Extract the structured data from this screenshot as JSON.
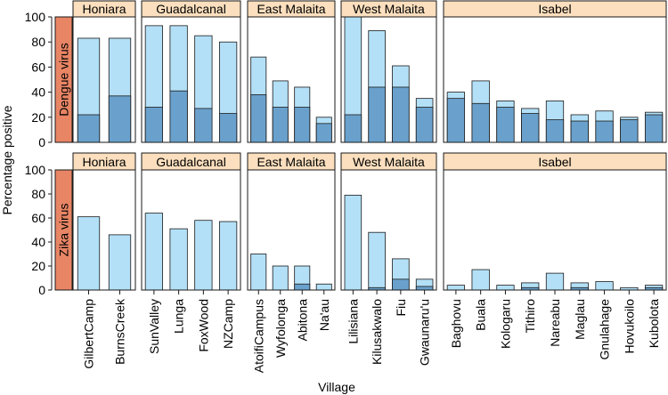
{
  "chart_data": {
    "type": "bar",
    "title": "",
    "xlabel": "Village",
    "ylabel": "Percentage positive",
    "ylim": [
      0,
      100
    ],
    "yticks": [
      0,
      20,
      40,
      60,
      80,
      100
    ],
    "colors": {
      "light": "#b3e0f7",
      "dark": "#6aa1cc",
      "strip": "#fbdfbe",
      "row_strip": "#e88565",
      "edge": "#1a1a1a"
    },
    "rows": [
      {
        "label": "Dengue virus",
        "key": "dengue"
      },
      {
        "label": "Zika virus",
        "key": "zika"
      }
    ],
    "panels": [
      {
        "region": "Honiara",
        "villages": [
          "GilbertCamp",
          "BurnsCreek"
        ],
        "dengue": {
          "total": [
            83,
            83
          ],
          "dark": [
            22,
            37
          ]
        },
        "zika": {
          "total": [
            61,
            46
          ],
          "dark": [
            0,
            0
          ]
        }
      },
      {
        "region": "Guadalcanal",
        "villages": [
          "SunValley",
          "Lunga",
          "FoxWood",
          "NZCamp"
        ],
        "dengue": {
          "total": [
            93,
            93,
            85,
            80
          ],
          "dark": [
            28,
            41,
            27,
            23
          ]
        },
        "zika": {
          "total": [
            64,
            51,
            58,
            57
          ],
          "dark": [
            0,
            0,
            0,
            0
          ]
        }
      },
      {
        "region": "East Malaita",
        "villages": [
          "AtoifiCampus",
          "Wyfolonga",
          "Abitona",
          "Na'au"
        ],
        "dengue": {
          "total": [
            68,
            49,
            44,
            20
          ],
          "dark": [
            38,
            28,
            28,
            15
          ]
        },
        "zika": {
          "total": [
            30,
            20,
            20,
            5
          ],
          "dark": [
            0,
            0,
            5,
            0
          ]
        }
      },
      {
        "region": "West Malaita",
        "villages": [
          "Lilisiana",
          "Kilusakwalo",
          "Fiu",
          "Gwaunaru'u"
        ],
        "dengue": {
          "total": [
            100,
            89,
            61,
            35
          ],
          "dark": [
            22,
            44,
            44,
            28
          ]
        },
        "zika": {
          "total": [
            79,
            48,
            26,
            9
          ],
          "dark": [
            0,
            2,
            9,
            3
          ]
        }
      },
      {
        "region": "Isabel",
        "villages": [
          "Baghovu",
          "Buala",
          "Kologaru",
          "Tithiro",
          "Nareabu",
          "Maglau",
          "Gnulahage",
          "Hovukoilo",
          "Kubolota"
        ],
        "dengue": {
          "total": [
            40,
            49,
            33,
            27,
            33,
            22,
            25,
            20,
            24
          ],
          "dark": [
            35,
            31,
            28,
            23,
            18,
            17,
            17,
            18,
            22
          ]
        },
        "zika": {
          "total": [
            4,
            17,
            4,
            6,
            14,
            6,
            7,
            2,
            4
          ],
          "dark": [
            0,
            0,
            0,
            2,
            0,
            2,
            0,
            0,
            2
          ]
        }
      }
    ]
  }
}
